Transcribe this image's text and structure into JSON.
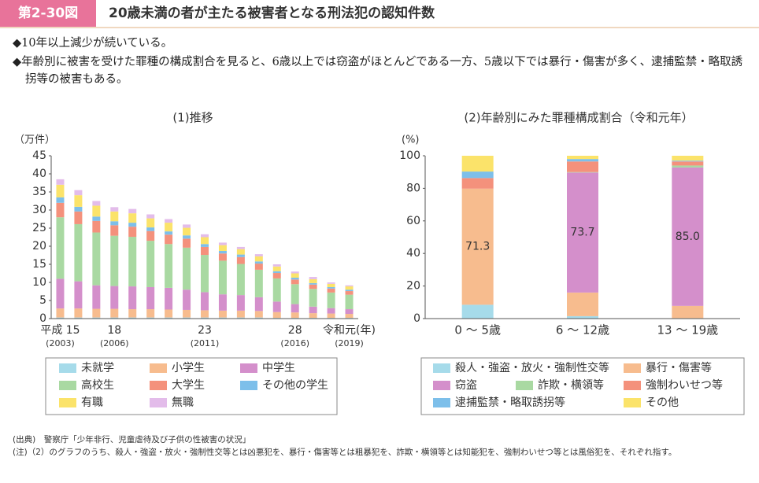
{
  "header": {
    "label": "第2-30図",
    "title": "20歳未満の者が主たる被害者となる刑法犯の認知件数"
  },
  "bullets": [
    "◆10年以上減少が続いている。",
    "◆年齢別に被害を受けた罪種の構成割合を見ると、6歳以上では窃盗がほとんどである一方、5歳以下では暴行・傷害が多く、逮捕監禁・略取誘拐等の被害もある。"
  ],
  "chart_data": [
    {
      "type": "stacked_bar",
      "title": "(1)推移",
      "y_unit": "（万件）",
      "categories": [
        "平成 15",
        null,
        null,
        "18",
        null,
        null,
        null,
        null,
        "23",
        null,
        null,
        null,
        null,
        "28",
        null,
        null,
        "令和元(年)"
      ],
      "category_sublabels": [
        "(2003)",
        null,
        null,
        "(2006)",
        null,
        null,
        null,
        null,
        "(2011)",
        null,
        null,
        null,
        null,
        "(2016)",
        null,
        null,
        "(2019)"
      ],
      "ylim": [
        0,
        45
      ],
      "yticks": [
        0,
        5,
        10,
        15,
        20,
        25,
        30,
        35,
        40,
        45
      ],
      "series": [
        {
          "name": "未就学",
          "color": "#a6dbea",
          "values": [
            0.3,
            0.3,
            0.3,
            0.3,
            0.3,
            0.3,
            0.3,
            0.3,
            0.3,
            0.3,
            0.3,
            0.3,
            0.2,
            0.2,
            0.2,
            0.2,
            0.2
          ]
        },
        {
          "name": "小学生",
          "color": "#f7bc8e",
          "values": [
            2.5,
            2.5,
            2.4,
            2.4,
            2.3,
            2.3,
            2.2,
            2.1,
            2.0,
            1.9,
            1.9,
            1.8,
            1.6,
            1.5,
            1.3,
            1.2,
            1.1
          ]
        },
        {
          "name": "中学生",
          "color": "#d48fcb",
          "values": [
            8.2,
            7.5,
            6.5,
            6.3,
            6.3,
            6.1,
            6.0,
            5.6,
            5.0,
            4.5,
            4.3,
            3.8,
            2.9,
            2.3,
            1.8,
            1.5,
            1.3
          ]
        },
        {
          "name": "高校生",
          "color": "#a9d9a2",
          "values": [
            17.0,
            15.8,
            14.6,
            13.9,
            13.7,
            12.8,
            12.1,
            11.6,
            10.3,
            9.3,
            8.6,
            7.6,
            6.4,
            5.5,
            4.9,
            4.3,
            4.0
          ]
        },
        {
          "name": "大学生",
          "color": "#f4917c",
          "values": [
            4.0,
            3.5,
            3.2,
            2.9,
            2.8,
            2.7,
            2.6,
            2.5,
            2.2,
            2.0,
            1.9,
            1.7,
            1.5,
            1.3,
            1.2,
            1.1,
            1.0
          ]
        },
        {
          "name": "その他の学生",
          "color": "#7dbfea",
          "values": [
            1.5,
            1.3,
            1.2,
            1.1,
            1.1,
            1.0,
            0.9,
            0.9,
            0.8,
            0.7,
            0.7,
            0.6,
            0.5,
            0.5,
            0.4,
            0.4,
            0.4
          ]
        },
        {
          "name": "有職",
          "color": "#fbe36a",
          "values": [
            3.5,
            3.2,
            3.0,
            2.7,
            2.6,
            2.5,
            2.4,
            2.1,
            1.9,
            1.6,
            1.5,
            1.4,
            1.3,
            1.2,
            1.1,
            0.9,
            0.9
          ]
        },
        {
          "name": "無職",
          "color": "#e3bcea",
          "values": [
            1.5,
            1.4,
            1.3,
            1.2,
            1.2,
            1.1,
            1.0,
            0.9,
            0.8,
            0.7,
            0.6,
            0.6,
            0.6,
            0.5,
            0.6,
            0.4,
            0.3
          ]
        }
      ]
    },
    {
      "type": "stacked_bar",
      "title": "(2)年齢別にみた罪種構成割合（令和元年）",
      "y_unit": "(%)",
      "categories": [
        "0 ～ 5歳",
        "6 ～ 12歳",
        "13 ～ 19歳"
      ],
      "ylim": [
        0,
        100
      ],
      "yticks": [
        0,
        20,
        40,
        60,
        80,
        100
      ],
      "series": [
        {
          "name": "殺人・強盗・放火・強制性交等",
          "color": "#a6dbea",
          "values": [
            8.5,
            1.5,
            0.3
          ]
        },
        {
          "name": "暴行・傷害等",
          "color": "#f7bc8e",
          "values": [
            71.3,
            14.5,
            7.5
          ],
          "value_labels": [
            "71.3",
            null,
            null
          ]
        },
        {
          "name": "窃盗",
          "color": "#d48fcb",
          "values": [
            0,
            73.7,
            85
          ],
          "value_labels": [
            null,
            "73.7",
            "85.0"
          ]
        },
        {
          "name": "詐欺・横領等",
          "color": "#a9d9a2",
          "values": [
            0,
            0.3,
            1.2
          ]
        },
        {
          "name": "強制わいせつ等",
          "color": "#f4917c",
          "values": [
            6.5,
            6.5,
            2.5
          ]
        },
        {
          "name": "逮捕監禁・略取誘拐等",
          "color": "#7dbfea",
          "values": [
            4,
            1.5,
            0.5
          ]
        },
        {
          "name": "その他",
          "color": "#fbe36a",
          "values": [
            9.7,
            2.0,
            3.0
          ]
        }
      ]
    }
  ],
  "notes": [
    "(出典)　警察庁「少年非行、児童虐待及び子供の性被害の状況」",
    "(注)（2）のグラフのうち、殺人・強盗・放火・強制性交等とは凶悪犯を、暴行・傷害等とは粗暴犯を、詐欺・横領等とは知能犯を、強制わいせつ等とは風俗犯を、それぞれ指す。"
  ]
}
